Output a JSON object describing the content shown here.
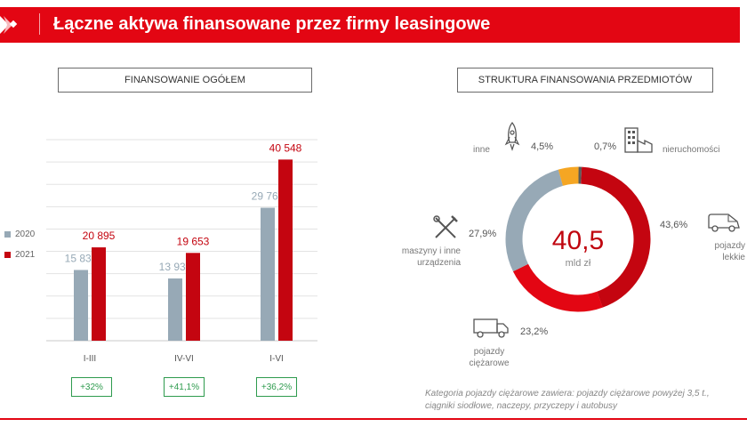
{
  "header": {
    "title": "Łączne aktywa finansowane przez firmy leasingowe"
  },
  "left_panel": {
    "title": "FINANSOWANIE OGÓŁEM"
  },
  "right_panel": {
    "title": "STRUKTURA FINANSOWANIA PRZEDMIOTÓW"
  },
  "colors": {
    "brand": "#e30613",
    "series_2020": "#97a9b6",
    "series_2021": "#c40510",
    "accent": "#f5a623",
    "growth": "#2e9b4e"
  },
  "chart_data": [
    {
      "type": "bar",
      "categories": [
        "I-III",
        "IV-VI",
        "I-VI"
      ],
      "series": [
        {
          "name": "2020",
          "values": [
            15832,
            13930,
            29761
          ],
          "labels": [
            "15 832",
            "13 930",
            "29 761"
          ],
          "color": "#97a9b6"
        },
        {
          "name": "2021",
          "values": [
            20895,
            19653,
            40548
          ],
          "labels": [
            "20 895",
            "19 653",
            "40 548"
          ],
          "color": "#c40510"
        }
      ],
      "growth": [
        "+32%",
        "+41,1%",
        "+36,2%"
      ],
      "ylim": [
        0,
        45000
      ],
      "grid": true,
      "legend": "left"
    },
    {
      "type": "pie",
      "center_value": "40,5",
      "center_unit": "mld zł",
      "slices": [
        {
          "name": "pojazdy lekkie",
          "value": 43.6,
          "label": "43,6%",
          "color": "#c40510"
        },
        {
          "name": "pojazdy ciężarowe",
          "value": 23.2,
          "label": "23,2%",
          "color": "#e30613"
        },
        {
          "name": "maszyny i inne urządzenia",
          "value": 27.9,
          "label": "27,9%",
          "color": "#97a9b6"
        },
        {
          "name": "inne",
          "value": 4.5,
          "label": "4,5%",
          "color": "#f5a623"
        },
        {
          "name": "nieruchomości",
          "value": 0.7,
          "label": "0,7%",
          "color": "#5a5a5a"
        }
      ]
    }
  ],
  "category_names": {
    "inne": "inne",
    "nieruchomosci": "nieruchomości",
    "lekkie_1": "pojazdy",
    "lekkie_2": "lekkie",
    "maszyny_1": "maszyny i inne",
    "maszyny_2": "urządzenia",
    "ciezarowe_1": "pojazdy",
    "ciezarowe_2": "ciężarowe"
  },
  "icons": {
    "inne": "rocket-icon",
    "nieruchomosci": "building-icon",
    "lekkie": "van-icon",
    "maszyny": "tools-icon",
    "ciezarowe": "truck-icon"
  },
  "footnote": "Kategoria pojazdy ciężarowe zawiera: pojazdy ciężarowe powyżej 3,5 t., ciągniki siodłowe, naczepy, przyczepy i autobusy"
}
